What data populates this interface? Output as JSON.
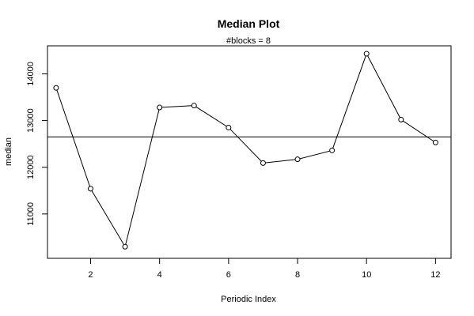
{
  "chart_data": {
    "type": "line",
    "title": "Median Plot",
    "subtitle": "#blocks =  8",
    "xlabel": "Periodic Index",
    "ylabel": "median",
    "x": [
      1,
      2,
      3,
      4,
      5,
      6,
      7,
      8,
      9,
      10,
      11,
      12
    ],
    "series": [
      {
        "values": [
          13700,
          11540,
          10300,
          13280,
          13320,
          12850,
          12090,
          12170,
          12360,
          14430,
          13020,
          12530
        ]
      }
    ],
    "reference_line": {
      "y": 12650
    },
    "xlim": [
      0.75,
      12.45
    ],
    "ylim": [
      10050,
      14600
    ],
    "xticks": [
      2,
      4,
      6,
      8,
      10,
      12
    ],
    "yticks": [
      11000,
      12000,
      13000,
      14000
    ],
    "grid": false,
    "marker": "open-circle"
  }
}
